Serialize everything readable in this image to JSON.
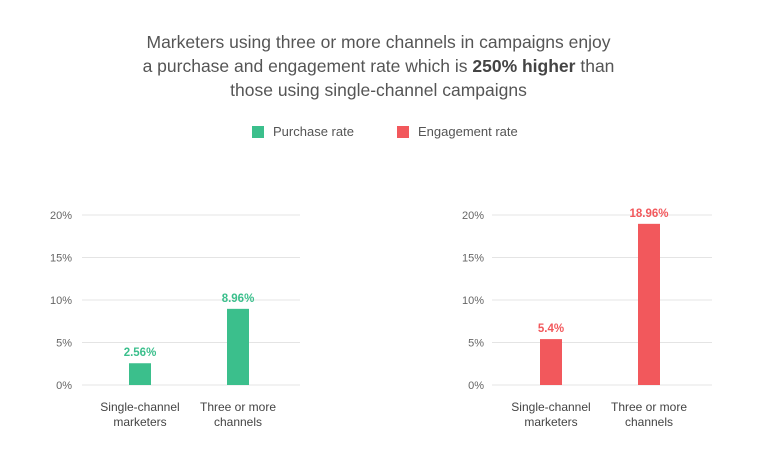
{
  "header": {
    "title_line1": "Marketers using three or more channels in campaigns enjoy",
    "title_line2_pre": "a purchase and engagement rate which is ",
    "title_line2_bold": "250% higher",
    "title_line2_post": " than",
    "title_line3": "those using single-channel campaigns"
  },
  "legend": [
    {
      "label": "Purchase rate",
      "color": "#3bbf8c"
    },
    {
      "label": "Engagement rate",
      "color": "#f2585c"
    }
  ],
  "chart_data": [
    {
      "type": "bar",
      "categories": [
        [
          "Single-channel",
          "marketers"
        ],
        [
          "Three or more",
          "channels"
        ]
      ],
      "series": [
        {
          "name": "Purchase rate",
          "values": [
            2.56,
            8.96
          ],
          "labels": [
            "2.56%",
            "8.96%"
          ],
          "color": "#3bbf8c"
        }
      ],
      "yticks": [
        "0%",
        "5%",
        "10%",
        "15%",
        "20%"
      ],
      "ylim": [
        0,
        20
      ],
      "grid": true,
      "legend": "top-center"
    },
    {
      "type": "bar",
      "categories": [
        [
          "Single-channel",
          "marketers"
        ],
        [
          "Three or more",
          "channels"
        ]
      ],
      "series": [
        {
          "name": "Engagement rate",
          "values": [
            5.4,
            18.96
          ],
          "labels": [
            "5.4%",
            "18.96%"
          ],
          "color": "#f2585c"
        }
      ],
      "yticks": [
        "0%",
        "5%",
        "10%",
        "15%",
        "20%"
      ],
      "ylim": [
        0,
        20
      ],
      "grid": true,
      "legend": "top-center"
    }
  ]
}
